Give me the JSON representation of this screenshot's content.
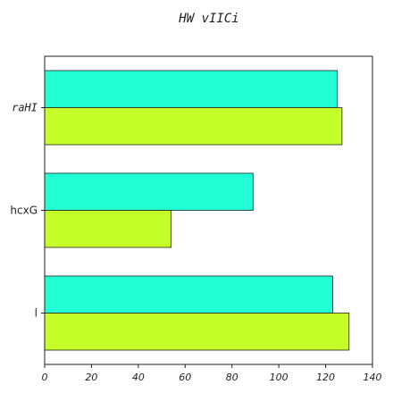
{
  "chart_data": {
    "type": "bar",
    "orientation": "horizontal",
    "title": "HW  vIICi",
    "xlabel": "",
    "ylabel": "",
    "categories": [
      "raHI",
      "hcxG",
      "l"
    ],
    "series": [
      {
        "color": "#22ffd4",
        "values": [
          125,
          89,
          123
        ]
      },
      {
        "color": "#c5ff2a",
        "values": [
          127,
          54,
          130
        ]
      }
    ],
    "xlim": [
      0,
      140
    ],
    "xticks": [
      0,
      20,
      40,
      60,
      80,
      100,
      120,
      140
    ],
    "grid": false,
    "legend": "none"
  }
}
